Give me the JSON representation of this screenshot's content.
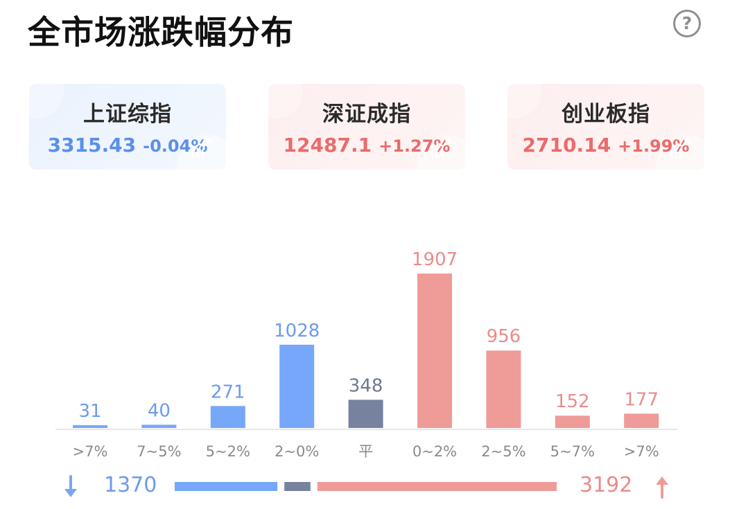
{
  "header": {
    "title": "全市场涨跌幅分布",
    "help_icon": "?"
  },
  "indices": [
    {
      "name": "上证综指",
      "value": "3315.43",
      "change": "-0.04%",
      "color": "#5b8fea",
      "bg": "blue"
    },
    {
      "name": "深证成指",
      "value": "12487.1",
      "change": "+1.27%",
      "color": "#ea6b6b",
      "bg": "red"
    },
    {
      "name": "创业板指",
      "value": "2710.14",
      "change": "+1.99%",
      "color": "#ea6b6b",
      "bg": "red"
    }
  ],
  "chart_data": {
    "type": "bar",
    "categories": [
      ">7%",
      "7~5%",
      "5~2%",
      "2~0%",
      "平",
      "0~2%",
      "2~5%",
      "5~7%",
      ">7%"
    ],
    "values": [
      31,
      40,
      271,
      1028,
      348,
      1907,
      956,
      152,
      177
    ],
    "colors": [
      "#77a7f8",
      "#77a7f8",
      "#77a7f8",
      "#77a7f8",
      "#76829e",
      "#ef9b98",
      "#ef9b98",
      "#ef9b98",
      "#ef9b98"
    ],
    "label_colors": [
      "#6b9af0",
      "#6b9af0",
      "#6b9af0",
      "#6b9af0",
      "#6c7894",
      "#ea8c89",
      "#ea8c89",
      "#ea8c89",
      "#ea8c89"
    ],
    "ylim": [
      0,
      1907
    ],
    "grid": false
  },
  "summary": {
    "down_total": "1370",
    "up_total": "3192",
    "down_color": "#77a7f8",
    "flat_color": "#76829e",
    "up_color": "#ef9b98",
    "flat_count": 348
  }
}
